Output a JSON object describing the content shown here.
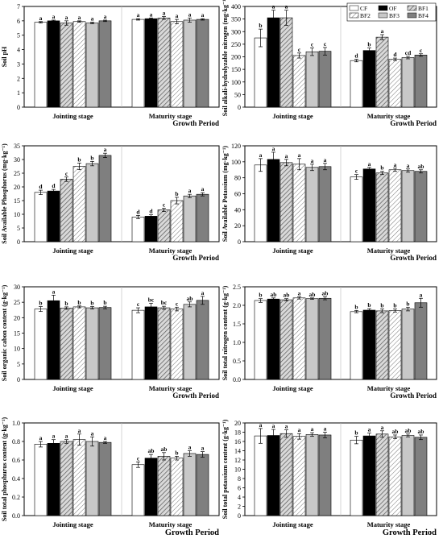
{
  "legend": {
    "items": [
      {
        "label": "CF",
        "pattern": "white"
      },
      {
        "label": "OF",
        "pattern": "black"
      },
      {
        "label": "BF1",
        "pattern": "hatch"
      },
      {
        "label": "BF2",
        "pattern": "hatchLight"
      },
      {
        "label": "BF3",
        "pattern": "lightgray"
      },
      {
        "label": "BF4",
        "pattern": "darkgray"
      }
    ]
  },
  "chart_data": [
    {
      "type": "bar",
      "ylabel": "Soil pH",
      "ylim": [
        0,
        7
      ],
      "yticks": [
        0,
        1,
        2,
        3,
        4,
        5,
        6,
        7
      ],
      "categories": [
        "Jointing stage",
        "Maturity stage"
      ],
      "xlabel": "Growth Period",
      "series": [
        {
          "name": "CF",
          "values": [
            5.9,
            6.1
          ],
          "errors": [
            0.05,
            0.05
          ],
          "letters": [
            "a",
            "a"
          ]
        },
        {
          "name": "OF",
          "values": [
            6.0,
            6.15
          ],
          "errors": [
            0.05,
            0.05
          ],
          "letters": [
            "a",
            "a"
          ]
        },
        {
          "name": "BF1",
          "values": [
            5.85,
            6.2
          ],
          "errors": [
            0.15,
            0.1
          ],
          "letters": [
            "a",
            "a"
          ]
        },
        {
          "name": "BF2",
          "values": [
            5.95,
            5.95
          ],
          "errors": [
            0.05,
            0.15
          ],
          "letters": [
            "a",
            "a"
          ]
        },
        {
          "name": "BF3",
          "values": [
            5.85,
            6.05
          ],
          "errors": [
            0.05,
            0.15
          ],
          "letters": [
            "a",
            "a"
          ]
        },
        {
          "name": "BF4",
          "values": [
            6.0,
            6.1
          ],
          "errors": [
            0.05,
            0.05
          ],
          "letters": [
            "a",
            "a"
          ]
        }
      ]
    },
    {
      "type": "bar",
      "ylabel": "Soil alkali-hydrolyzable nitrogen (mg·kg⁻¹)",
      "ylim": [
        0,
        400
      ],
      "yticks": [
        0,
        50,
        100,
        150,
        200,
        250,
        300,
        350,
        400
      ],
      "categories": [
        "Jointing stage",
        "Maturity stage"
      ],
      "xlabel": "Growth Period",
      "series": [
        {
          "name": "CF",
          "values": [
            275,
            185
          ],
          "errors": [
            35,
            5
          ],
          "letters": [
            "b",
            "d"
          ]
        },
        {
          "name": "OF",
          "values": [
            355,
            225
          ],
          "errors": [
            30,
            10
          ],
          "letters": [
            "a",
            "b"
          ]
        },
        {
          "name": "BF1",
          "values": [
            355,
            278
          ],
          "errors": [
            30,
            10
          ],
          "letters": [
            "a",
            "a"
          ]
        },
        {
          "name": "BF2",
          "values": [
            205,
            190
          ],
          "errors": [
            10,
            5
          ],
          "letters": [
            "c",
            "d"
          ]
        },
        {
          "name": "BF3",
          "values": [
            220,
            197
          ],
          "errors": [
            15,
            5
          ],
          "letters": [
            "c",
            "cd"
          ]
        },
        {
          "name": "BF4",
          "values": [
            222,
            207
          ],
          "errors": [
            15,
            5
          ],
          "letters": [
            "c",
            "c"
          ]
        }
      ]
    },
    {
      "type": "bar",
      "ylabel": "Soil Available Phosphorus (mg·kg⁻¹)",
      "ylim": [
        0,
        35
      ],
      "yticks": [
        0,
        5,
        10,
        15,
        20,
        25,
        30,
        35
      ],
      "categories": [
        "Jointing stage",
        "Maturity stage"
      ],
      "xlabel": "Growth Period",
      "series": [
        {
          "name": "CF",
          "values": [
            18,
            9
          ],
          "errors": [
            0.8,
            0.6
          ],
          "letters": [
            "d",
            "d"
          ]
        },
        {
          "name": "OF",
          "values": [
            18.5,
            9.3
          ],
          "errors": [
            0.6,
            0.5
          ],
          "letters": [
            "d",
            "d"
          ]
        },
        {
          "name": "BF1",
          "values": [
            22.8,
            11.6
          ],
          "errors": [
            0.8,
            0.6
          ],
          "letters": [
            "c",
            "c"
          ]
        },
        {
          "name": "BF2",
          "values": [
            27.5,
            15
          ],
          "errors": [
            1.2,
            1.2
          ],
          "letters": [
            "b",
            "b"
          ]
        },
        {
          "name": "BF3",
          "values": [
            28.5,
            16.7
          ],
          "errors": [
            0.8,
            0.6
          ],
          "letters": [
            "b",
            "a"
          ]
        },
        {
          "name": "BF4",
          "values": [
            31.5,
            17.3
          ],
          "errors": [
            0.8,
            0.6
          ],
          "letters": [
            "a",
            "a"
          ]
        }
      ]
    },
    {
      "type": "bar",
      "ylabel": "Soil Available Potassium (mg·kg⁻¹)",
      "ylim": [
        0,
        120
      ],
      "yticks": [
        0,
        20,
        40,
        60,
        80,
        100,
        120
      ],
      "categories": [
        "Jointing stage",
        "Maturity stage"
      ],
      "xlabel": "Growth Period",
      "series": [
        {
          "name": "CF",
          "values": [
            96,
            81
          ],
          "errors": [
            8,
            3
          ],
          "letters": [
            "a",
            "c"
          ]
        },
        {
          "name": "OF",
          "values": [
            103,
            91
          ],
          "errors": [
            9,
            2
          ],
          "letters": [
            "a",
            "a"
          ]
        },
        {
          "name": "BF1",
          "values": [
            99,
            86
          ],
          "errors": [
            4,
            2
          ],
          "letters": [
            "a",
            "b"
          ]
        },
        {
          "name": "BF2",
          "values": [
            97,
            90
          ],
          "errors": [
            7,
            2
          ],
          "letters": [
            "a",
            "a"
          ]
        },
        {
          "name": "BF3",
          "values": [
            93,
            89
          ],
          "errors": [
            4,
            2
          ],
          "letters": [
            "a",
            "a"
          ]
        },
        {
          "name": "BF4",
          "values": [
            94,
            88
          ],
          "errors": [
            4,
            2
          ],
          "letters": [
            "a",
            "ab"
          ]
        }
      ]
    },
    {
      "type": "bar",
      "ylabel": "Soil organic cabon content (g·kg⁻¹)",
      "ylim": [
        0,
        30
      ],
      "yticks": [
        0,
        5,
        10,
        15,
        20,
        25,
        30
      ],
      "categories": [
        "Jointing stage",
        "Maturity stage"
      ],
      "xlabel": "Growth Period",
      "series": [
        {
          "name": "CF",
          "values": [
            22.8,
            22.4
          ],
          "errors": [
            0.8,
            0.8
          ],
          "letters": [
            "b",
            "c"
          ]
        },
        {
          "name": "OF",
          "values": [
            25.5,
            23.5
          ],
          "errors": [
            1.8,
            1.2
          ],
          "letters": [
            "a",
            "bc"
          ]
        },
        {
          "name": "BF1",
          "values": [
            23.1,
            23.2
          ],
          "errors": [
            0.4,
            0.5
          ],
          "letters": [
            "b",
            "bc"
          ]
        },
        {
          "name": "BF2",
          "values": [
            23.5,
            22.8
          ],
          "errors": [
            0.3,
            0.6
          ],
          "letters": [
            "b",
            "c"
          ]
        },
        {
          "name": "BF3",
          "values": [
            23.2,
            24.3
          ],
          "errors": [
            0.4,
            0.8
          ],
          "letters": [
            "b",
            "ab"
          ]
        },
        {
          "name": "BF4",
          "values": [
            23.3,
            25.6
          ],
          "errors": [
            0.4,
            1.3
          ],
          "letters": [
            "b",
            "a"
          ]
        }
      ]
    },
    {
      "type": "bar",
      "ylabel": "Soil total nitrogen content (g·kg⁻¹)",
      "ylim": [
        0,
        2.5
      ],
      "yticks": [
        0,
        0.5,
        1.0,
        1.5,
        2.0,
        2.5
      ],
      "categories": [
        "Jointing stage",
        "Maturity stage"
      ],
      "xlabel": "Growth Period",
      "series": [
        {
          "name": "CF",
          "values": [
            2.13,
            1.83
          ],
          "errors": [
            0.05,
            0.03
          ],
          "letters": [
            "b",
            "b"
          ]
        },
        {
          "name": "OF",
          "values": [
            2.17,
            1.87
          ],
          "errors": [
            0.03,
            0.04
          ],
          "letters": [
            "ab",
            "b"
          ]
        },
        {
          "name": "BF1",
          "values": [
            2.15,
            1.85
          ],
          "errors": [
            0.03,
            0.05
          ],
          "letters": [
            "ab",
            "b"
          ]
        },
        {
          "name": "BF2",
          "values": [
            2.2,
            1.86
          ],
          "errors": [
            0.03,
            0.04
          ],
          "letters": [
            "a",
            "b"
          ]
        },
        {
          "name": "BF3",
          "values": [
            2.18,
            1.9
          ],
          "errors": [
            0.02,
            0.05
          ],
          "letters": [
            "ab",
            "b"
          ]
        },
        {
          "name": "BF4",
          "values": [
            2.19,
            2.07
          ],
          "errors": [
            0.04,
            0.12
          ],
          "letters": [
            "ab",
            "a"
          ]
        }
      ]
    },
    {
      "type": "bar",
      "ylabel": "Soil total phosphurus content (g·kg⁻¹)",
      "ylim": [
        0,
        1.0
      ],
      "yticks": [
        0,
        0.2,
        0.4,
        0.6,
        0.8,
        1.0
      ],
      "categories": [
        "Jointing stage",
        "Maturity stage"
      ],
      "xlabel": "Growth Period",
      "series": [
        {
          "name": "CF",
          "values": [
            0.77,
            0.55
          ],
          "errors": [
            0.03,
            0.03
          ],
          "letters": [
            "a",
            "c"
          ]
        },
        {
          "name": "OF",
          "values": [
            0.78,
            0.62
          ],
          "errors": [
            0.04,
            0.04
          ],
          "letters": [
            "a",
            "ab"
          ]
        },
        {
          "name": "BF1",
          "values": [
            0.8,
            0.64
          ],
          "errors": [
            0.02,
            0.04
          ],
          "letters": [
            "a",
            "ab"
          ]
        },
        {
          "name": "BF2",
          "values": [
            0.82,
            0.62
          ],
          "errors": [
            0.06,
            0.02
          ],
          "letters": [
            "a",
            "b"
          ]
        },
        {
          "name": "BF3",
          "values": [
            0.8,
            0.67
          ],
          "errors": [
            0.05,
            0.03
          ],
          "letters": [
            "a",
            "a"
          ]
        },
        {
          "name": "BF4",
          "values": [
            0.79,
            0.66
          ],
          "errors": [
            0.01,
            0.03
          ],
          "letters": [
            "a",
            "a"
          ]
        }
      ]
    },
    {
      "type": "bar",
      "ylabel": "Soil total potassium content (g·kg⁻¹)",
      "ylim": [
        0,
        20
      ],
      "yticks": [
        0,
        2,
        4,
        6,
        8,
        10,
        12,
        14,
        16,
        18,
        20
      ],
      "categories": [
        "Jointing stage",
        "Maturity stage"
      ],
      "xlabel": "Growth Period",
      "series": [
        {
          "name": "CF",
          "values": [
            17.2,
            16.3
          ],
          "errors": [
            1.6,
            0.8
          ],
          "letters": [
            "a",
            "b"
          ]
        },
        {
          "name": "OF",
          "values": [
            17.3,
            17.2
          ],
          "errors": [
            1.3,
            0.6
          ],
          "letters": [
            "a",
            "a"
          ]
        },
        {
          "name": "BF1",
          "values": [
            17.7,
            17.6
          ],
          "errors": [
            0.8,
            0.7
          ],
          "letters": [
            "a",
            "a"
          ]
        },
        {
          "name": "BF2",
          "values": [
            17.1,
            17.0
          ],
          "errors": [
            0.6,
            0.4
          ],
          "letters": [
            "a",
            "ab"
          ]
        },
        {
          "name": "BF3",
          "values": [
            17.5,
            17.3
          ],
          "errors": [
            0.4,
            0.3
          ],
          "letters": [
            "a",
            "ab"
          ]
        },
        {
          "name": "BF4",
          "values": [
            17.4,
            16.9
          ],
          "errors": [
            0.6,
            0.5
          ],
          "letters": [
            "a",
            "ab"
          ]
        }
      ]
    }
  ]
}
